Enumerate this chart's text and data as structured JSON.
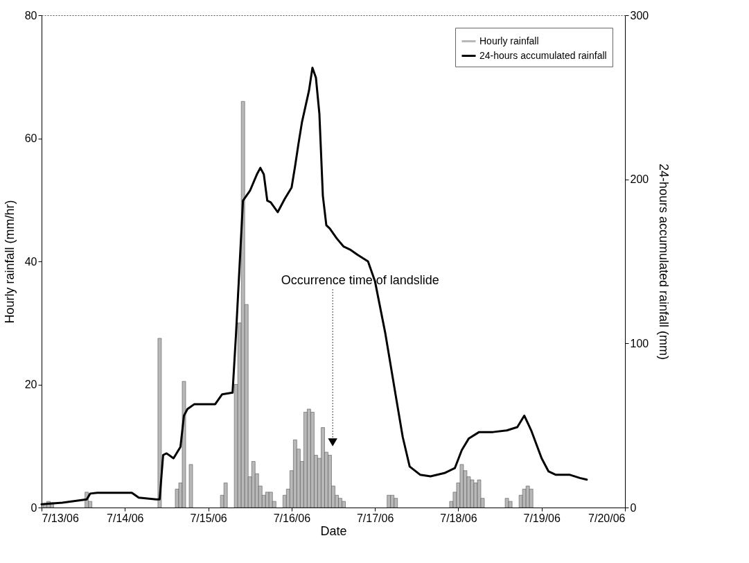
{
  "chart_data": {
    "type": "bar",
    "xlabel": "Date",
    "ylabel": "Hourly rainfall (mm/hr)",
    "y2label": "24-hours accumulated rainfall (mm)",
    "xlim": [
      "--07-13T00:00",
      "--07-20T00:00"
    ],
    "xticks": [
      {
        "value": "--07-13",
        "label": "7/13/06"
      },
      {
        "value": "--07-14",
        "label": "7/14/06"
      },
      {
        "value": "--07-15",
        "label": "7/15/06"
      },
      {
        "value": "--07-16",
        "label": "7/16/06"
      },
      {
        "value": "--07-17",
        "label": "7/17/06"
      },
      {
        "value": "--07-18",
        "label": "7/18/06"
      },
      {
        "value": "--07-19",
        "label": "7/19/06"
      },
      {
        "value": "--07-20",
        "label": "7/20/06"
      }
    ],
    "ylim": [
      0,
      80
    ],
    "yticks": [
      0,
      20,
      40,
      60,
      80
    ],
    "y2lim": [
      0,
      300
    ],
    "y2ticks": [
      0,
      100,
      200,
      300
    ],
    "legend": "top right",
    "grid": false,
    "annotations": [
      "Occurrence time of landslide"
    ],
    "series": [
      {
        "name": "Hourly rainfall",
        "color": "#b8b8b8",
        "x": [
          "--07-13T01:00",
          "--07-13T02:00",
          "--07-13T03:00",
          "--07-13T13:00",
          "--07-13T14:00",
          "--07-14T10:00",
          "--07-14T15:00",
          "--07-14T16:00",
          "--07-14T17:00",
          "--07-14T19:00",
          "--07-15T04:00",
          "--07-15T05:00",
          "--07-15T08:00",
          "--07-15T09:00",
          "--07-15T10:00",
          "--07-15T11:00",
          "--07-15T12:00",
          "--07-15T13:00",
          "--07-15T14:00",
          "--07-15T15:00",
          "--07-15T16:00",
          "--07-15T17:00",
          "--07-15T18:00",
          "--07-15T19:00",
          "--07-15T22:00",
          "--07-15T23:00",
          "--07-16T00:00",
          "--07-16T01:00",
          "--07-16T02:00",
          "--07-16T03:00",
          "--07-16T04:00",
          "--07-16T05:00",
          "--07-16T06:00",
          "--07-16T07:00",
          "--07-16T08:00",
          "--07-16T09:00",
          "--07-16T10:00",
          "--07-16T11:00",
          "--07-16T12:00",
          "--07-16T13:00",
          "--07-16T14:00",
          "--07-16T15:00",
          "--07-17T04:00",
          "--07-17T05:00",
          "--07-17T06:00",
          "--07-17T22:00",
          "--07-17T23:00",
          "--07-18T00:00",
          "--07-18T01:00",
          "--07-18T02:00",
          "--07-18T03:00",
          "--07-18T04:00",
          "--07-18T05:00",
          "--07-18T06:00",
          "--07-18T07:00",
          "--07-18T14:00",
          "--07-18T15:00",
          "--07-18T18:00",
          "--07-18T19:00",
          "--07-18T20:00",
          "--07-18T21:00"
        ],
        "values": [
          0.5,
          1,
          0.8,
          2.5,
          1,
          27.5,
          3,
          4,
          20.5,
          7,
          2,
          4,
          20,
          30,
          66,
          33,
          5,
          7.5,
          5.5,
          3.5,
          2,
          2.5,
          2.5,
          1,
          2,
          3,
          6,
          11,
          9.5,
          7.5,
          15.5,
          16,
          15.5,
          8.5,
          8,
          13,
          9,
          8.5,
          3.5,
          2,
          1.5,
          1,
          2,
          2,
          1.5,
          1,
          2.5,
          4,
          7,
          6,
          5,
          4.5,
          4,
          4.5,
          1.5,
          1.5,
          1,
          2,
          3,
          3.5,
          3
        ]
      },
      {
        "name": "24-hours accumulated rainfall",
        "type": "line",
        "axis": "y2",
        "color": "#000000",
        "x": [
          "--07-13T00:00",
          "--07-13T06:00",
          "--07-13T13:00",
          "--07-13T14:00",
          "--07-13T16:00",
          "--07-14T02:00",
          "--07-14T04:00",
          "--07-14T09:00",
          "--07-14T10:00",
          "--07-14T11:00",
          "--07-14T12:00",
          "--07-14T14:00",
          "--07-14T16:00",
          "--07-14T17:00",
          "--07-14T18:00",
          "--07-14T20:00",
          "--07-15T02:00",
          "--07-15T04:00",
          "--07-15T07:00",
          "--07-15T08:00",
          "--07-15T10:00",
          "--07-15T12:00",
          "--07-15T14:00",
          "--07-15T15:00",
          "--07-15T16:00",
          "--07-15T17:00",
          "--07-15T18:00",
          "--07-15T20:00",
          "--07-15T22:00",
          "--07-16T00:00",
          "--07-16T01:00",
          "--07-16T02:00",
          "--07-16T03:00",
          "--07-16T05:00",
          "--07-16T06:00",
          "--07-16T07:00",
          "--07-16T08:00",
          "--07-16T09:00",
          "--07-16T10:00",
          "--07-16T11:00",
          "--07-16T13:00",
          "--07-16T15:00",
          "--07-16T17:00",
          "--07-16T19:00",
          "--07-16T22:00",
          "--07-17T00:00",
          "--07-17T03:00",
          "--07-17T06:00",
          "--07-17T08:00",
          "--07-17T10:00",
          "--07-17T13:00",
          "--07-17T16:00",
          "--07-17T20:00",
          "--07-17T23:00",
          "--07-18T01:00",
          "--07-18T03:00",
          "--07-18T06:00",
          "--07-18T10:00",
          "--07-18T14:00",
          "--07-18T17:00",
          "--07-18T19:00",
          "--07-18T21:00",
          "--07-19T00:00",
          "--07-19T02:00",
          "--07-19T04:00",
          "--07-19T08:00",
          "--07-19T11:00",
          "--07-19T13:00"
        ],
        "values": [
          2,
          3,
          5,
          8.5,
          9,
          9,
          6,
          5,
          5,
          32,
          33,
          30,
          37,
          56,
          60,
          63,
          63,
          69,
          70,
          106,
          187,
          193,
          203,
          207,
          203,
          187,
          186,
          180,
          188,
          195,
          208,
          222,
          235,
          254,
          268,
          262,
          240,
          190,
          172,
          170,
          164,
          159,
          157,
          154,
          150,
          138,
          106,
          68,
          43,
          25,
          20,
          19,
          21,
          24,
          35,
          42,
          46,
          46,
          47,
          49,
          56,
          47,
          30,
          22,
          20,
          20,
          18,
          17
        ]
      }
    ]
  }
}
